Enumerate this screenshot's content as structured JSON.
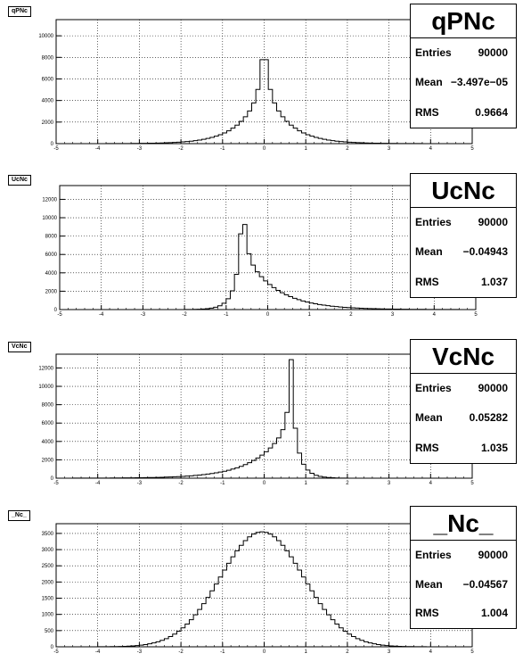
{
  "page": {
    "footer_text": ""
  },
  "chart_data": [
    {
      "type": "bar",
      "tag": "qPNc",
      "stats": {
        "title": "qPNc",
        "entries_label": "Entries",
        "entries": "90000",
        "mean_label": "Mean",
        "mean": "−3.497e−05",
        "rms_label": "RMS",
        "rms": "0.9664"
      },
      "xlim": [
        -5,
        5
      ],
      "ylim": [
        0,
        11500
      ],
      "yticks": [
        0,
        2000,
        4000,
        6000,
        8000,
        10000
      ],
      "xticks": [
        -5,
        -4,
        -3,
        -2,
        -1,
        0,
        1,
        2,
        3,
        4,
        5
      ],
      "grid": true,
      "shape": {
        "kind": "laplace",
        "center": 0.0,
        "scale": 0.55,
        "peak": 10600,
        "spike": 5000,
        "spike_width": 0.08
      }
    },
    {
      "type": "bar",
      "tag": "UcNc",
      "stats": {
        "title": "UcNc",
        "entries_label": "Entries",
        "entries": "90000",
        "mean_label": "Mean",
        "mean": "−0.04943",
        "rms_label": "RMS",
        "rms": "1.037"
      },
      "xlim": [
        -5,
        5
      ],
      "ylim": [
        0,
        13500
      ],
      "yticks": [
        0,
        2000,
        4000,
        6000,
        8000,
        10000,
        12000
      ],
      "xticks": [
        -5,
        -4,
        -3,
        -2,
        -1,
        0,
        1,
        2,
        3,
        4,
        5
      ],
      "grid": true,
      "shape": {
        "kind": "skewright",
        "center": -0.6,
        "left_scale": 0.2,
        "right_scale": 0.75,
        "peak": 13000,
        "spike": 6500,
        "spike_width": 0.07
      }
    },
    {
      "type": "bar",
      "tag": "VcNc",
      "stats": {
        "title": "VcNc",
        "entries_label": "Entries",
        "entries": "90000",
        "mean_label": "Mean",
        "mean": "0.05282",
        "rms_label": "RMS",
        "rms": "1.035"
      },
      "xlim": [
        -5,
        5
      ],
      "ylim": [
        0,
        13500
      ],
      "yticks": [
        0,
        2000,
        4000,
        6000,
        8000,
        10000,
        12000
      ],
      "xticks": [
        -5,
        -4,
        -3,
        -2,
        -1,
        0,
        1,
        2,
        3,
        4,
        5
      ],
      "grid": true,
      "shape": {
        "kind": "skewleft",
        "center": 0.65,
        "left_scale": 0.75,
        "right_scale": 0.2,
        "peak": 12900,
        "spike": 6500,
        "spike_width": 0.07
      }
    },
    {
      "type": "bar",
      "tag": "_Nc_",
      "stats": {
        "title": "_Nc_",
        "entries_label": "Entries",
        "entries": "90000",
        "mean_label": "Mean",
        "mean": "−0.04567",
        "rms_label": "RMS",
        "rms": "1.004"
      },
      "xlim": [
        -5,
        5
      ],
      "ylim": [
        0,
        3800
      ],
      "yticks": [
        0,
        500,
        1000,
        1500,
        2000,
        2500,
        3000,
        3500
      ],
      "xticks": [
        -5,
        -4,
        -3,
        -2,
        -1,
        0,
        1,
        2,
        3,
        4,
        5
      ],
      "grid": true,
      "shape": {
        "kind": "gauss",
        "center": -0.05,
        "sigma": 1.0,
        "peak": 3550
      }
    }
  ]
}
